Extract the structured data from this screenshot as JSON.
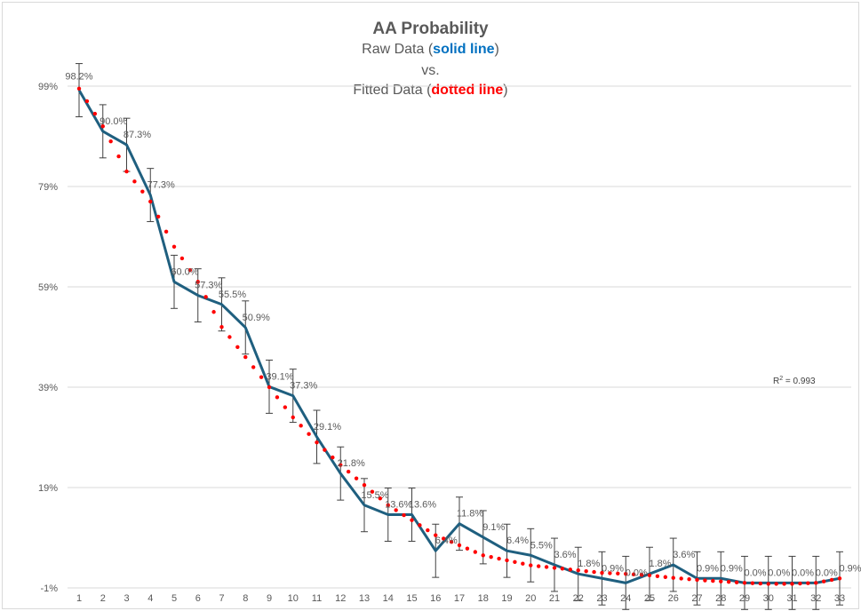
{
  "chart_data": {
    "type": "line",
    "title": "AA Probability",
    "subtitle": {
      "line1_prefix": "Raw Data (",
      "line1_em": "solid line",
      "line1_suffix": ")",
      "line2": "vs.",
      "line3_prefix": "Fitted Data (",
      "line3_em": "dotted line",
      "line3_suffix": ")"
    },
    "xlabel": "",
    "ylabel": "",
    "x": [
      1,
      2,
      3,
      4,
      5,
      6,
      7,
      8,
      9,
      10,
      11,
      12,
      13,
      14,
      15,
      16,
      17,
      18,
      19,
      20,
      21,
      22,
      23,
      24,
      25,
      26,
      27,
      28,
      29,
      30,
      31,
      32,
      33
    ],
    "y_ticks": [
      "-1%",
      "19%",
      "39%",
      "59%",
      "79%",
      "99%"
    ],
    "ylim": [
      -1,
      99
    ],
    "grid": true,
    "series": [
      {
        "style": "solid",
        "color": "#1f5f7f",
        "values": [
          98.2,
          90.0,
          87.3,
          77.3,
          60.0,
          57.3,
          55.5,
          50.9,
          39.1,
          37.3,
          29.1,
          21.8,
          15.5,
          13.6,
          13.6,
          6.4,
          11.8,
          9.1,
          6.4,
          5.5,
          3.6,
          1.8,
          0.9,
          0.0,
          1.8,
          3.6,
          0.9,
          0.9,
          0.0,
          0.0,
          0.0,
          0.0,
          0.9
        ],
        "labels": [
          "98.2%",
          "90.0%",
          "87.3%",
          "77.3%",
          "60.0%",
          "57.3%",
          "55.5%",
          "50.9%",
          "39.1%",
          "37.3%",
          "29.1%",
          "21.8%",
          "15.5%",
          "13.6%",
          "13.6%",
          "6.4%",
          "11.8%",
          "9.1%",
          "6.4%",
          "5.5%",
          "3.6%",
          "1.8%",
          "0.9%",
          "0.0%",
          "1.8%",
          "3.6%",
          "0.9%",
          "0.9%",
          "0.0%",
          "0.0%",
          "0.0%",
          "0.0%",
          "0.9%"
        ],
        "error_bar": 5.3
      },
      {
        "style": "dotted",
        "color": "#ff0000",
        "values": [
          98.5,
          91,
          82,
          76,
          67,
          60,
          51,
          45,
          39,
          33,
          28,
          23.5,
          19.5,
          15.5,
          12.5,
          9.5,
          7.5,
          5.5,
          4.5,
          3.5,
          3.0,
          2.5,
          2.0,
          1.8,
          1.5,
          1.0,
          0.6,
          0.3,
          0.0,
          -0.2,
          -0.2,
          0.0,
          0.9
        ]
      }
    ],
    "annotation": {
      "r2_prefix": "R",
      "r2_sup": "2",
      "r2_value": " = 0.993"
    }
  }
}
